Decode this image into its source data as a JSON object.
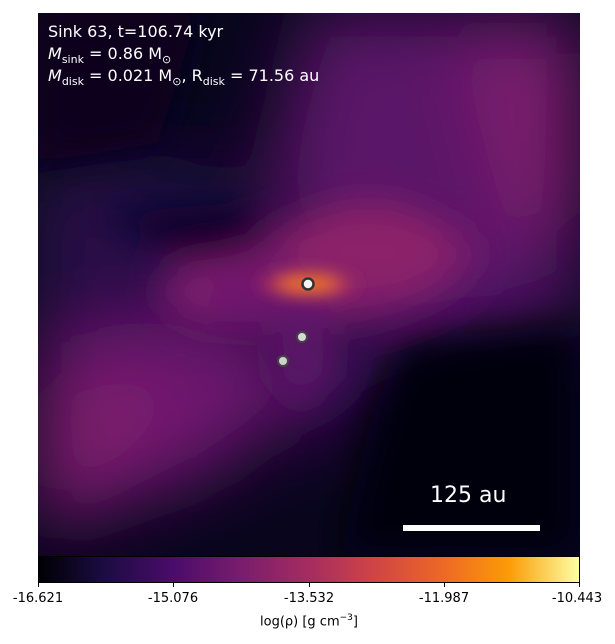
{
  "figure": {
    "title_line1": "Sink 63, t=106.74 kyr",
    "sink_mass_label": "M",
    "sink_mass_sub": "sink",
    "sink_mass_value": " = 0.86 M",
    "sun_symbol": "⊙",
    "disk_mass_label": "M",
    "disk_mass_sub": "disk",
    "disk_mass_value": " = 0.021 M",
    "disk_radius_label": ", R",
    "disk_radius_sub": "disk",
    "disk_radius_value": " = 71.56 au"
  },
  "scalebar": {
    "label": "125 au"
  },
  "colorbar": {
    "ticks": [
      "-16.621",
      "-15.076",
      "-13.532",
      "-11.987",
      "-10.443"
    ],
    "title_main": "log(ρ) [g cm",
    "title_sup": "−3",
    "title_end": "]",
    "colormap": "inferno"
  },
  "sinks": [
    {
      "name": "primary"
    },
    {
      "name": "secondary"
    },
    {
      "name": "tertiary"
    }
  ]
}
